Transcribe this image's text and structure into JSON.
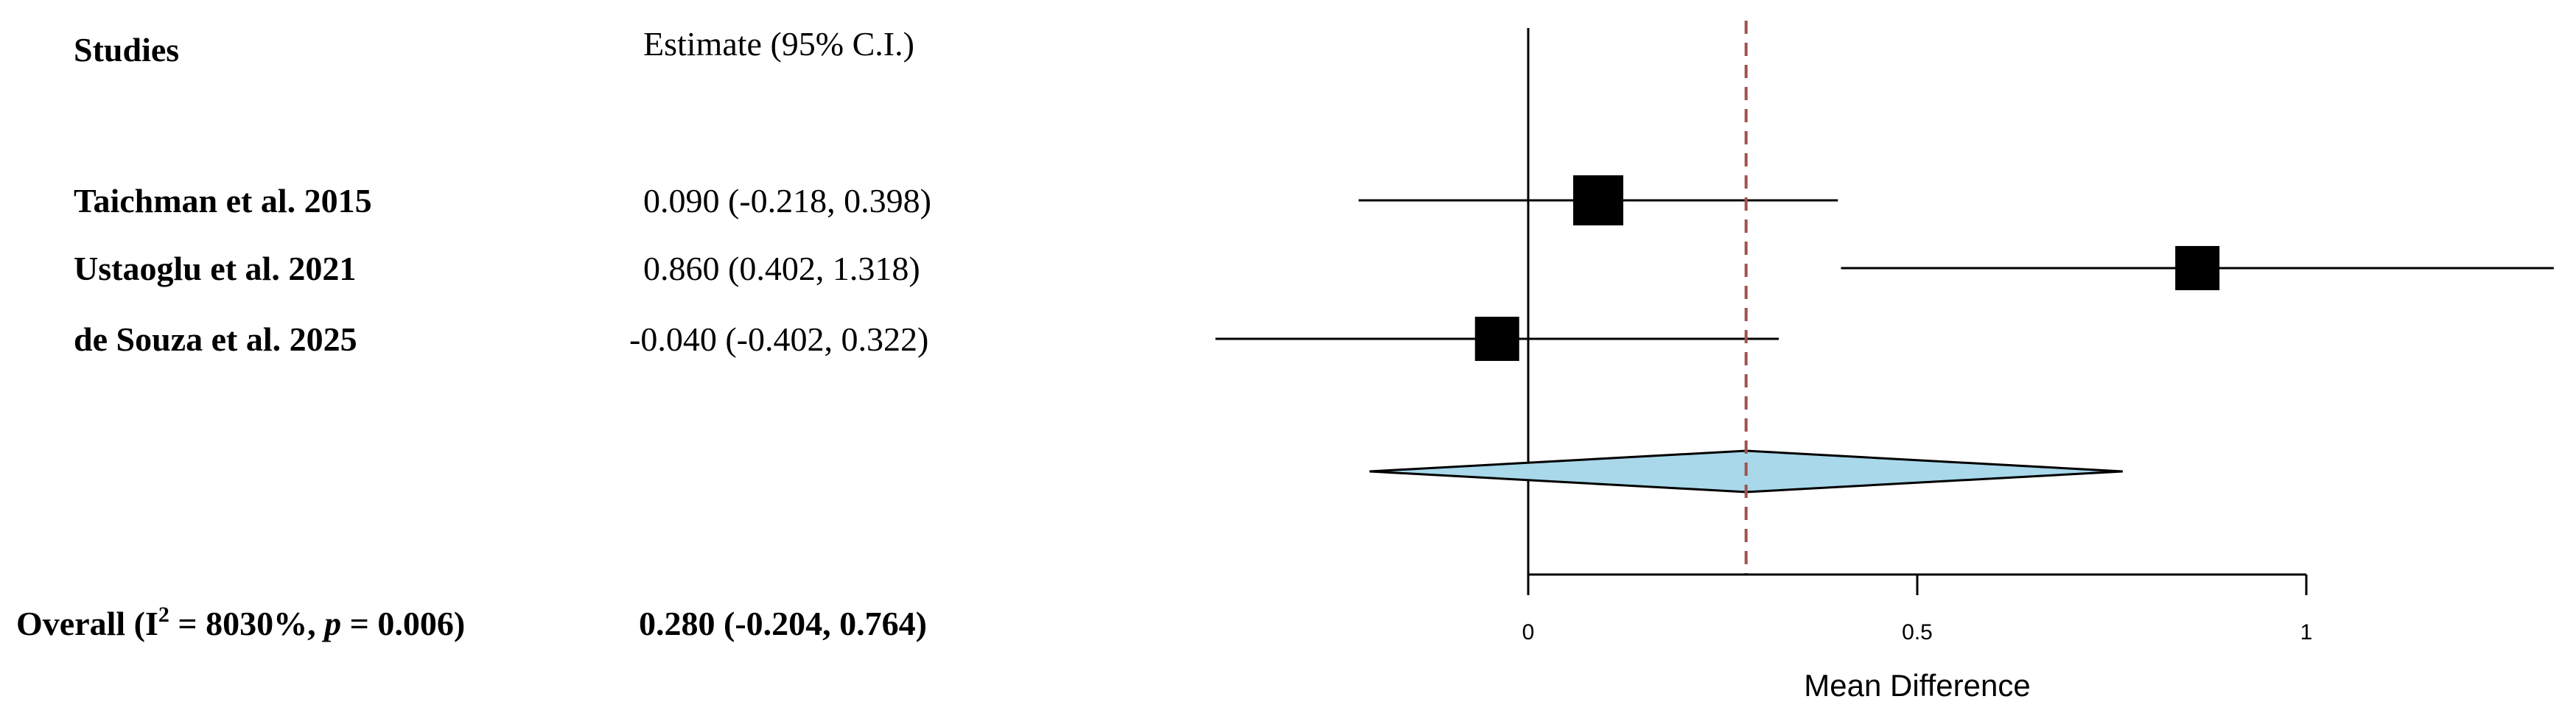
{
  "chart_data": {
    "type": "forest",
    "headers": {
      "studies": "Studies",
      "estimate": "Estimate  (95% C.I.)"
    },
    "studies": [
      {
        "name": "Taichman et al. 2015",
        "estimate": 0.09,
        "lower": -0.218,
        "upper": 0.398,
        "text": "0.090  (-0.218,  0.398)"
      },
      {
        "name": "Ustaoglu et al. 2021",
        "estimate": 0.86,
        "lower": 0.402,
        "upper": 1.318,
        "text": "0.860  (0.402,  1.318)"
      },
      {
        "name": "de Souza et al. 2025",
        "estimate": -0.04,
        "lower": -0.402,
        "upper": 0.322,
        "text": "-0.040  (-0.402,  0.322)"
      }
    ],
    "overall": {
      "label_prefix": "Overall (I",
      "label_sup": "2",
      "label_mid": " = 8030%, ",
      "label_p": "p",
      "label_suffix": " = 0.006)",
      "estimate": 0.28,
      "lower": -0.204,
      "upper": 0.764,
      "text": "0.280 (-0.204,  0.764)"
    },
    "xaxis": {
      "label": "Mean Difference",
      "ticks": [
        0,
        0.5,
        1
      ],
      "tick_labels": [
        "0",
        "0.5",
        "1"
      ],
      "range": [
        -0.402,
        1.318
      ]
    },
    "colors": {
      "diamond": "#a8d8ea",
      "reference_line": "#a0524f",
      "box": "#000000"
    }
  }
}
